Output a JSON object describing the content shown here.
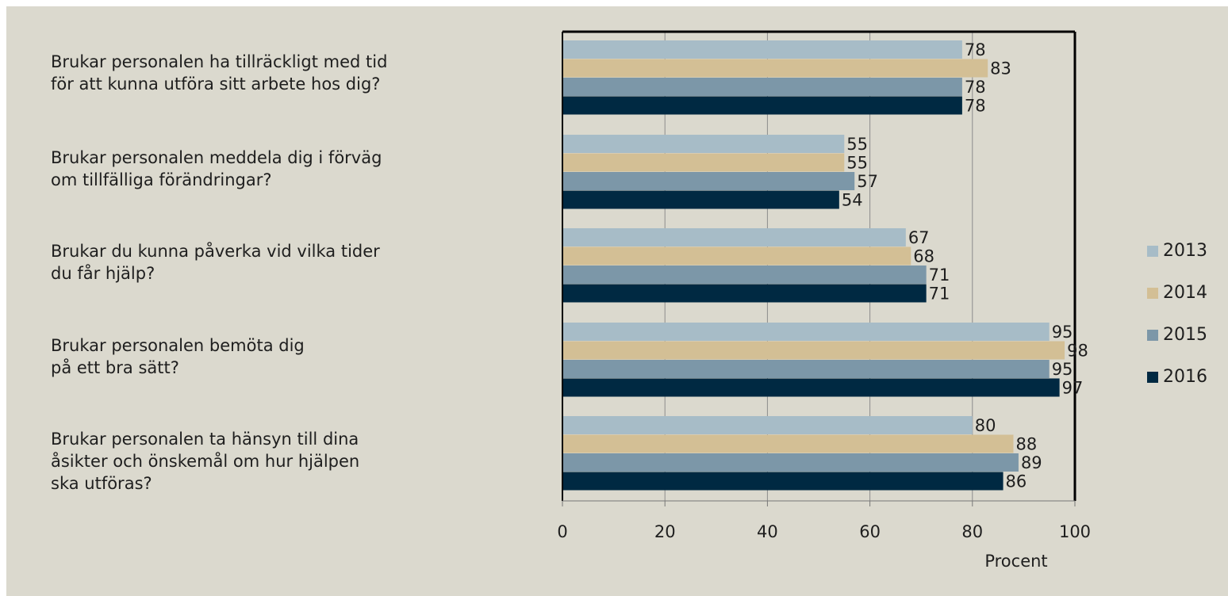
{
  "chart_data": {
    "type": "bar",
    "orientation": "horizontal",
    "categories": [
      "Brukar personalen ha tillräckligt med tid\nför att kunna utföra sitt arbete hos dig?",
      "Brukar personalen meddela dig i förväg\nom tillfälliga förändringar?",
      "Brukar du kunna påverka vid vilka tider\ndu får hjälp?",
      "Brukar personalen bemöta dig\npå ett bra sätt?",
      "Brukar personalen ta hänsyn till dina\nåsikter och önskemål om hur hjälpen\nska utföras?"
    ],
    "series": [
      {
        "name": "2013",
        "color": "#a7bcc7",
        "values": [
          78,
          55,
          67,
          95,
          80
        ]
      },
      {
        "name": "2014",
        "color": "#d3bf95",
        "values": [
          83,
          55,
          68,
          98,
          88
        ]
      },
      {
        "name": "2015",
        "color": "#7c97a8",
        "values": [
          78,
          57,
          71,
          95,
          89
        ]
      },
      {
        "name": "2016",
        "color": "#002942",
        "values": [
          78,
          54,
          71,
          97,
          86
        ]
      }
    ],
    "xlabel": "Procent",
    "xlim": [
      0,
      100
    ],
    "xticks": [
      0,
      20,
      40,
      60,
      80,
      100
    ],
    "grid": true,
    "legend_position": "right"
  }
}
